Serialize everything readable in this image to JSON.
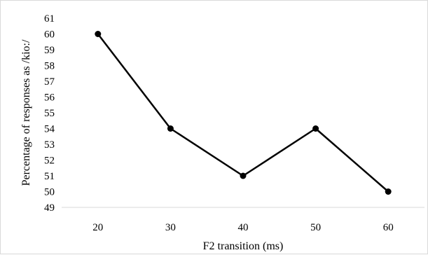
{
  "chart_data": {
    "type": "line",
    "title": "",
    "xlabel": "F2 transition (ms)",
    "ylabel": "Percentage of responses as /kio:/",
    "categories": [
      "20",
      "30",
      "40",
      "50",
      "60"
    ],
    "series": [
      {
        "values": [
          60,
          54,
          51,
          54,
          50
        ]
      }
    ],
    "ylim": [
      49,
      61
    ],
    "ytick_step": 1,
    "grid": false,
    "legend": "none",
    "line_color": "#000000",
    "axis_color": "#d9d9d9"
  }
}
